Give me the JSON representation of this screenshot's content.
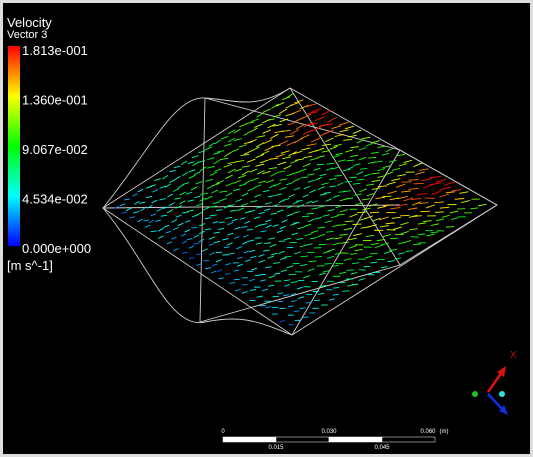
{
  "legend": {
    "title": "Velocity",
    "subtitle": "Vector 3",
    "labels": [
      "1.813e-001",
      "1.360e-001",
      "9.067e-002",
      "4.534e-002",
      "0.000e+000"
    ],
    "unit": "[m s^-1]"
  },
  "scale_bar": {
    "top_labels": [
      "0",
      "0.030",
      "0.060"
    ],
    "unit": "(m)",
    "bottom_labels": [
      "0.015",
      "0.045"
    ]
  },
  "axis_triad": {
    "label": "X"
  }
}
